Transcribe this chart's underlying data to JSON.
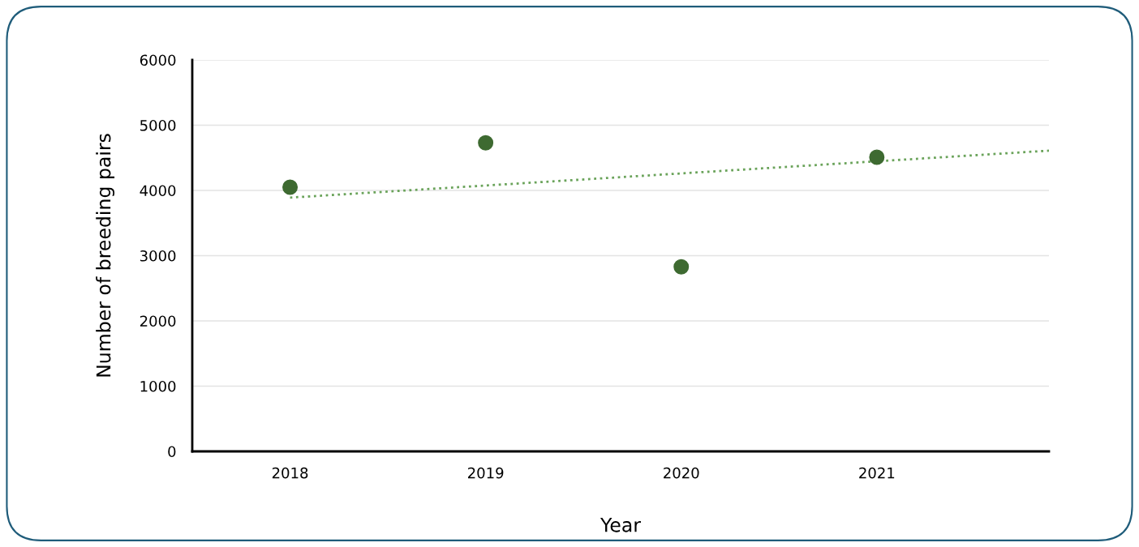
{
  "chart_data": {
    "type": "scatter",
    "xlabel": "Year",
    "ylabel": "Number of breeding pairs",
    "x": [
      2018,
      2019,
      2020,
      2021
    ],
    "series": [
      {
        "color": "#3e6a31",
        "values": [
          4050,
          4730,
          2830,
          4510
        ],
        "marker": "circle"
      },
      {
        "type": "line",
        "color": "#6aa35a",
        "x": [
          2018,
          2021.88
        ],
        "values": [
          3890,
          4610
        ],
        "line_style": "dotted",
        "marker": "none"
      }
    ],
    "xlim": [
      2017.5,
      2021.88
    ],
    "xticks": [
      2018,
      2019,
      2020,
      2021
    ],
    "ylim": [
      0,
      6000
    ],
    "yticks": [
      0,
      1000,
      2000,
      3000,
      4000,
      5000,
      6000
    ],
    "grid": "y",
    "legend": false
  }
}
